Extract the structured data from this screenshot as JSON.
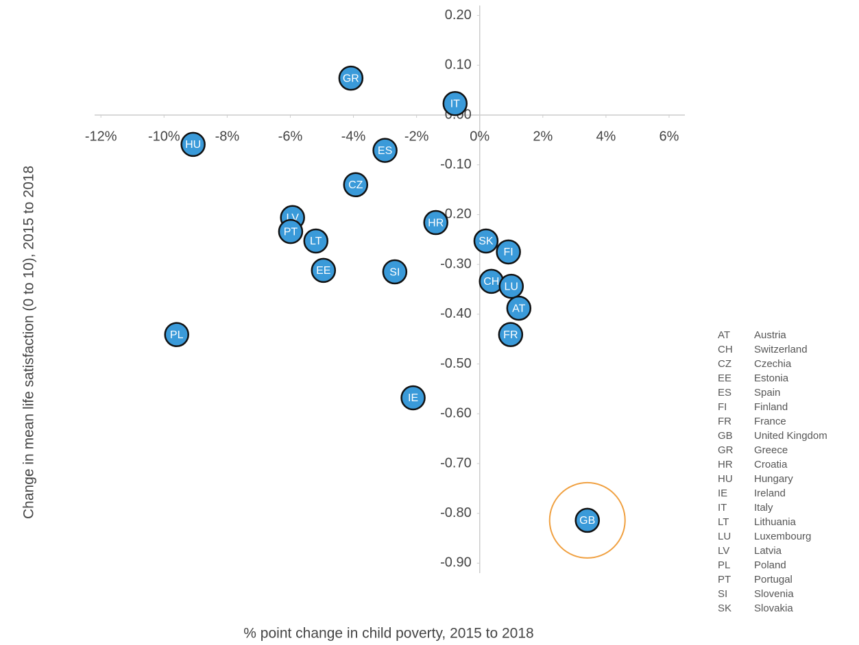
{
  "chart_data": {
    "type": "scatter",
    "x_label": "% point change in child poverty, 2015 to 2018",
    "y_label": "Change in mean life satisfaction (0 to 10), 2015 to 2018",
    "labels": [
      "GR",
      "IT",
      "HU",
      "ES",
      "CZ",
      "LV",
      "PT",
      "LT",
      "EE",
      "SI",
      "HR",
      "SK",
      "FI",
      "CH",
      "LU",
      "AT",
      "FR",
      "PL",
      "IE",
      "GB"
    ],
    "x": [
      -4.08,
      -0.78,
      -9.08,
      -3.0,
      -3.93,
      -5.93,
      -5.99,
      -5.19,
      -4.95,
      -2.69,
      -1.39,
      0.2,
      0.91,
      0.37,
      1.0,
      1.24,
      0.98,
      -9.6,
      -2.11,
      3.41
    ],
    "y": [
      0.074,
      0.023,
      -0.059,
      -0.071,
      -0.14,
      -0.206,
      -0.234,
      -0.253,
      -0.312,
      -0.315,
      -0.216,
      -0.253,
      -0.275,
      -0.334,
      -0.344,
      -0.388,
      -0.441,
      -0.441,
      -0.568,
      -0.814
    ],
    "color": "#3a9ad9",
    "highlighted": "GB",
    "highlight_color": "#f0a040",
    "xlim": [
      -12.2,
      6.5
    ],
    "ylim": [
      -0.92,
      0.22
    ],
    "xticks": [
      {
        "value": -12,
        "label": "-12%"
      },
      {
        "value": -10,
        "label": "-10%"
      },
      {
        "value": -8,
        "label": "-8%"
      },
      {
        "value": -6,
        "label": "-6%"
      },
      {
        "value": -4,
        "label": "-4%"
      },
      {
        "value": -2,
        "label": "-2%"
      },
      {
        "value": 0,
        "label": "0%"
      },
      {
        "value": 2,
        "label": "2%"
      },
      {
        "value": 4,
        "label": "4%"
      },
      {
        "value": 6,
        "label": "6%"
      }
    ],
    "yticks": [
      {
        "value": 0.2,
        "label": "0.20"
      },
      {
        "value": 0.1,
        "label": "0.10"
      },
      {
        "value": 0,
        "label": "0.00"
      },
      {
        "value": -0.1,
        "label": "-0.10"
      },
      {
        "value": -0.2,
        "label": "-0.20"
      },
      {
        "value": -0.3,
        "label": "-0.30"
      },
      {
        "value": -0.4,
        "label": "-0.40"
      },
      {
        "value": -0.5,
        "label": "-0.50"
      },
      {
        "value": -0.6,
        "label": "-0.60"
      },
      {
        "value": -0.7,
        "label": "-0.70"
      },
      {
        "value": -0.8,
        "label": "-0.80"
      },
      {
        "value": -0.9,
        "label": "-0.90"
      }
    ],
    "legend": [
      {
        "code": "AT",
        "name": "Austria"
      },
      {
        "code": "CH",
        "name": "Switzerland"
      },
      {
        "code": "CZ",
        "name": "Czechia"
      },
      {
        "code": "EE",
        "name": "Estonia"
      },
      {
        "code": "ES",
        "name": "Spain"
      },
      {
        "code": "FI",
        "name": "Finland"
      },
      {
        "code": "FR",
        "name": "France"
      },
      {
        "code": "GB",
        "name": "United Kingdom"
      },
      {
        "code": "GR",
        "name": "Greece"
      },
      {
        "code": "HR",
        "name": "Croatia"
      },
      {
        "code": "HU",
        "name": "Hungary"
      },
      {
        "code": "IE",
        "name": "Ireland"
      },
      {
        "code": "IT",
        "name": "Italy"
      },
      {
        "code": "LT",
        "name": "Lithuania"
      },
      {
        "code": "LU",
        "name": "Luxembourg"
      },
      {
        "code": "LV",
        "name": "Latvia"
      },
      {
        "code": "PL",
        "name": "Poland"
      },
      {
        "code": "PT",
        "name": "Portugal"
      },
      {
        "code": "SI",
        "name": "Slovenia"
      },
      {
        "code": "SK",
        "name": "Slovakia"
      }
    ]
  }
}
